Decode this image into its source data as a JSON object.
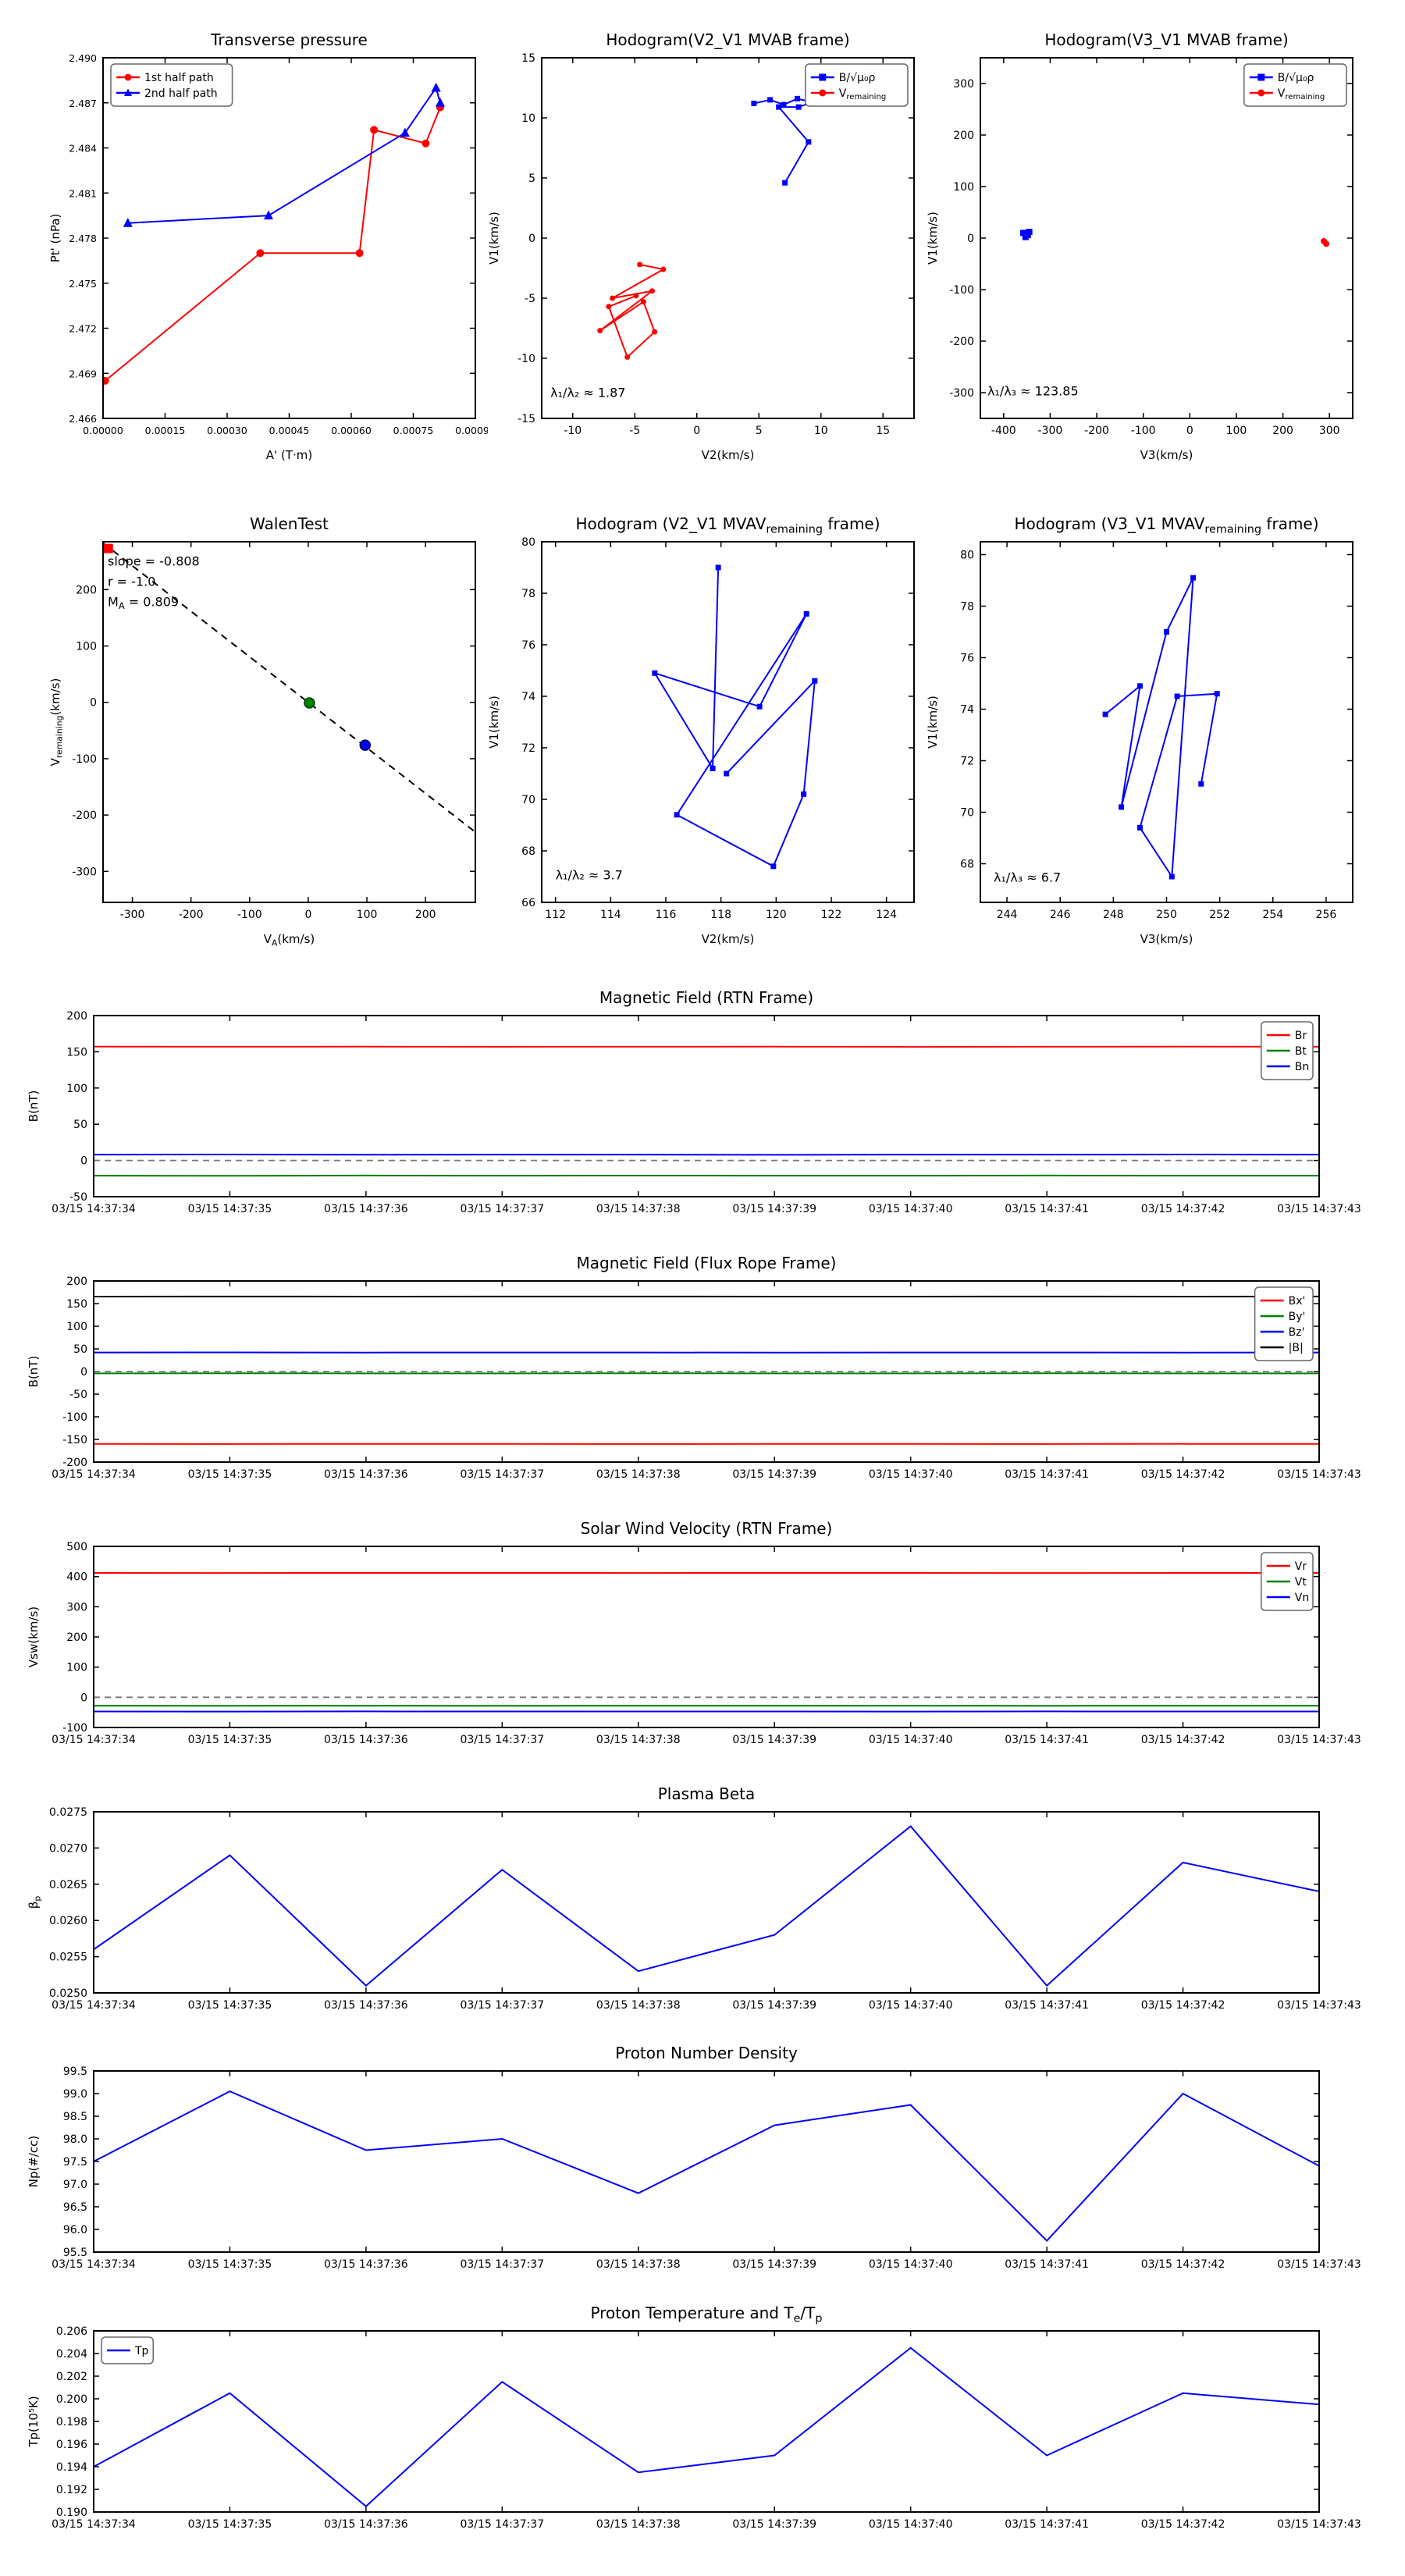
{
  "figure": {
    "background": "#ffffff"
  },
  "time_axis": [
    "03/15 14:37:34",
    "03/15 14:37:35",
    "03/15 14:37:36",
    "03/15 14:37:37",
    "03/15 14:37:38",
    "03/15 14:37:39",
    "03/15 14:37:40",
    "03/15 14:37:41",
    "03/15 14:37:42",
    "03/15 14:37:43"
  ],
  "colors": {
    "red": "#ff0000",
    "green": "#008000",
    "blue": "#0000ff",
    "black": "#000000",
    "dash_gray": "#777777"
  },
  "chart_data": [
    {
      "id": "transverse_pressure",
      "type": "line",
      "title": "Transverse pressure",
      "xlabel": "A' (T·m)",
      "ylabel": "Pt' (nPa)",
      "xlim": [
        0,
        0.0009
      ],
      "ylim": [
        2.466,
        2.49
      ],
      "xticks": [
        0,
        0.00015,
        0.0003,
        0.00045,
        0.0006,
        0.00075,
        0.0009
      ],
      "xtick_labels": [
        "0.00000",
        "0.00015",
        "0.00030",
        "0.00045",
        "0.00060",
        "0.00075",
        "0.00090"
      ],
      "yticks": [
        2.466,
        2.469,
        2.472,
        2.475,
        2.478,
        2.481,
        2.484,
        2.487,
        2.49
      ],
      "ytick_labels": [
        "2.466",
        "2.469",
        "2.472",
        "2.475",
        "2.478",
        "2.481",
        "2.484",
        "2.487",
        "2.490"
      ],
      "tick_font": 12.5,
      "legend": {
        "pos": "nw"
      },
      "series": [
        {
          "name": "1st half path",
          "color": "#ff0000",
          "marker": "circle",
          "marker_size": 10,
          "x": [
            5e-06,
            0.00038,
            0.00062,
            0.000655,
            0.00078,
            0.000815
          ],
          "y": [
            2.4685,
            2.477,
            2.477,
            2.4852,
            2.4843,
            2.4867
          ]
        },
        {
          "name": "2nd half path",
          "color": "#0000ff",
          "marker": "triangle",
          "marker_size": 11,
          "x": [
            6e-05,
            0.0004,
            0.00073,
            0.000805,
            0.000815
          ],
          "y": [
            2.479,
            2.4795,
            2.485,
            2.488,
            2.487
          ]
        }
      ]
    },
    {
      "id": "hodogram_v2v1_mvab",
      "type": "line",
      "title": "Hodogram(V2_V1 MVAB frame)",
      "xlabel": "V2(km/s)",
      "ylabel": "V1(km/s)",
      "xlim": [
        -12.5,
        17.5
      ],
      "ylim": [
        -15,
        15
      ],
      "xticks": [
        -10,
        -5,
        0,
        5,
        10,
        15
      ],
      "yticks": [
        -15,
        -10,
        -5,
        0,
        5,
        10,
        15
      ],
      "legend": {
        "pos": "ne"
      },
      "series": [
        {
          "name": "B/√μ₀ρ",
          "color": "#0000ff",
          "marker": "square",
          "marker_size": 7,
          "x": [
            4.6,
            5.9,
            7.0,
            8.1,
            9.3,
            8.2,
            6.6,
            9.0,
            7.1
          ],
          "y": [
            11.2,
            11.5,
            11.1,
            11.6,
            11.3,
            10.9,
            10.9,
            8.0,
            4.6
          ]
        },
        {
          "name": "V_{remaining}",
          "color": "#ff0000",
          "marker": "circle",
          "marker_size": 7,
          "x": [
            -4.6,
            -2.7,
            -6.8,
            -3.6,
            -7.8,
            -4.3,
            -3.4,
            -5.6,
            -7.1,
            -4.9
          ],
          "y": [
            -2.2,
            -2.6,
            -5.0,
            -4.4,
            -7.7,
            -5.3,
            -7.8,
            -9.9,
            -5.7,
            -4.8
          ]
        }
      ],
      "annotations": [
        {
          "text": "λ₁/λ₂ ≈ 1.87",
          "x": -11.8,
          "y": -13.2
        }
      ]
    },
    {
      "id": "hodogram_v3v1_mvab",
      "type": "line",
      "title": "Hodogram(V3_V1 MVAB frame)",
      "xlabel": "V3(km/s)",
      "ylabel": "V1(km/s)",
      "xlim": [
        -450,
        350
      ],
      "ylim": [
        -350,
        350
      ],
      "xticks": [
        -400,
        -300,
        -200,
        -100,
        0,
        100,
        200,
        300
      ],
      "yticks": [
        -300,
        -200,
        -100,
        0,
        100,
        200,
        300
      ],
      "legend": {
        "pos": "ne"
      },
      "series": [
        {
          "name": "B/√μ₀ρ",
          "color": "#0000ff",
          "marker": "square",
          "marker_size": 8,
          "x": [
            -358,
            -348,
            -353,
            -345
          ],
          "y": [
            10,
            6,
            2,
            12
          ]
        },
        {
          "name": "V_{remaining}",
          "color": "#ff0000",
          "marker": "circle",
          "marker_size": 8,
          "x": [
            288,
            293
          ],
          "y": [
            -6,
            -11
          ]
        }
      ],
      "annotations": [
        {
          "text": "λ₁/λ₃ ≈ 123.85",
          "x": -435,
          "y": -305
        }
      ]
    },
    {
      "id": "walen_test",
      "type": "scatter",
      "title": "WalenTest",
      "xlabel": "V_{A}(km/s)",
      "ylabel": "V_{remaining}(km/s)",
      "xlim": [
        -350,
        285
      ],
      "ylim": [
        -355,
        285
      ],
      "xticks": [
        -300,
        -200,
        -100,
        0,
        100,
        200
      ],
      "yticks": [
        -300,
        -200,
        -100,
        0,
        100,
        200
      ],
      "series": [
        {
          "color": "#000000",
          "dash": "9,7",
          "lw": 2,
          "marker": "none",
          "x": [
            -350,
            285
          ],
          "y": [
            282.8,
            -230.3
          ]
        },
        {
          "color": "#ff0000",
          "marker": "square",
          "marker_size": 12,
          "x": [
            -341
          ],
          "y": [
            273
          ]
        },
        {
          "color": "#008000",
          "marker": "circle",
          "marker_size": 13,
          "marker_edge": "#004400",
          "x": [
            2
          ],
          "y": [
            -1
          ]
        },
        {
          "color": "#0000ff",
          "marker": "circle",
          "marker_size": 13,
          "marker_edge": "#000044",
          "x": [
            97
          ],
          "y": [
            -76
          ]
        }
      ],
      "annotations": [
        {
          "text": "slope = -0.808",
          "x": -342,
          "y": 243
        },
        {
          "text": "r = -1.0",
          "x": -342,
          "y": 207
        },
        {
          "text": "M_{A} = 0.809",
          "x": -342,
          "y": 171
        }
      ]
    },
    {
      "id": "hodogram_v2v1_mvav",
      "type": "line",
      "title": "Hodogram (V2_V1 MVAV_{remaining} frame)",
      "xlabel": "V2(km/s)",
      "ylabel": "V1(km/s)",
      "xlim": [
        111.5,
        125
      ],
      "ylim": [
        66,
        80
      ],
      "xticks": [
        112,
        114,
        116,
        118,
        120,
        122,
        124
      ],
      "yticks": [
        66,
        68,
        70,
        72,
        74,
        76,
        78,
        80
      ],
      "series": [
        {
          "color": "#0000ff",
          "marker": "square",
          "marker_size": 7,
          "x": [
            117.9,
            117.7,
            115.6,
            119.4,
            121.1,
            116.4,
            119.9,
            121.0,
            121.4,
            118.2
          ],
          "y": [
            79.0,
            71.2,
            74.9,
            73.6,
            77.2,
            69.4,
            67.4,
            70.2,
            74.6,
            71.0
          ]
        }
      ],
      "annotations": [
        {
          "text": "λ₁/λ₂ ≈ 3.7",
          "x": 112.0,
          "y": 66.9
        }
      ]
    },
    {
      "id": "hodogram_v3v1_mvav",
      "type": "line",
      "title": "Hodogram (V3_V1 MVAV_{remaining} frame)",
      "xlabel": "V3(km/s)",
      "ylabel": "V1(km/s)",
      "xlim": [
        243,
        257
      ],
      "ylim": [
        66.5,
        80.5
      ],
      "xticks": [
        244,
        246,
        248,
        250,
        252,
        254,
        256
      ],
      "yticks": [
        68,
        70,
        72,
        74,
        76,
        78,
        80
      ],
      "series": [
        {
          "color": "#0000ff",
          "marker": "square",
          "marker_size": 7,
          "x": [
            247.7,
            249.0,
            248.3,
            250.0,
            251.0,
            250.2,
            249.0,
            250.4,
            251.9,
            251.3
          ],
          "y": [
            73.8,
            74.9,
            70.2,
            77.0,
            79.1,
            67.5,
            69.4,
            74.5,
            74.6,
            71.1
          ]
        }
      ],
      "annotations": [
        {
          "text": "λ₁/λ₃ ≈ 6.7",
          "x": 243.5,
          "y": 67.3
        }
      ]
    },
    {
      "id": "mag_rtn",
      "type": "line",
      "title": "Magnetic Field (RTN Frame)",
      "xlabel": "",
      "ylabel": "B(nT)",
      "xlim": [
        0,
        9
      ],
      "ylim": [
        -50,
        200
      ],
      "xticks": [
        0,
        1,
        2,
        3,
        4,
        5,
        6,
        7,
        8,
        9
      ],
      "xtick_labels": "TIME",
      "yticks": [
        -50,
        0,
        50,
        100,
        150,
        200
      ],
      "zero_line": true,
      "legend": {
        "pos": "ne"
      },
      "series": [
        {
          "name": "Br",
          "color": "#ff0000",
          "y": [
            157.2,
            157.0,
            157.1,
            156.9,
            157.0,
            157.1,
            156.8,
            157.0,
            157.2,
            157.0
          ]
        },
        {
          "name": "Bt",
          "color": "#008000",
          "y": [
            -21.0,
            -21.2,
            -20.8,
            -21.1,
            -20.9,
            -21.0,
            -21.1,
            -20.8,
            -21.0,
            -21.1
          ]
        },
        {
          "name": "Bn",
          "color": "#0000ff",
          "y": [
            8.0,
            8.2,
            7.9,
            8.1,
            8.0,
            7.8,
            8.1,
            8.0,
            8.2,
            8.0
          ]
        }
      ]
    },
    {
      "id": "mag_fluxrope",
      "type": "line",
      "title": "Magnetic Field (Flux Rope Frame)",
      "xlabel": "",
      "ylabel": "B(nT)",
      "xlim": [
        0,
        9
      ],
      "ylim": [
        -200,
        200
      ],
      "xticks": [
        0,
        1,
        2,
        3,
        4,
        5,
        6,
        7,
        8,
        9
      ],
      "xtick_labels": "TIME",
      "yticks": [
        -200,
        -150,
        -100,
        -50,
        0,
        50,
        100,
        150,
        200
      ],
      "zero_line": true,
      "legend": {
        "pos": "ne"
      },
      "series": [
        {
          "name": "Bx'",
          "color": "#ff0000",
          "y": [
            -159.8,
            -160.1,
            -159.9,
            -160.0,
            -160.2,
            -159.9,
            -160.0,
            -160.1,
            -159.8,
            -160.0
          ]
        },
        {
          "name": "By'",
          "color": "#008000",
          "y": [
            -4.0,
            -3.8,
            -4.1,
            -4.0,
            -3.9,
            -4.1,
            -4.0,
            -3.8,
            -4.0,
            -4.1
          ]
        },
        {
          "name": "Bz'",
          "color": "#0000ff",
          "y": [
            42.0,
            42.2,
            41.9,
            42.1,
            42.0,
            41.8,
            42.0,
            42.1,
            41.9,
            42.0
          ]
        },
        {
          "name": "|B|",
          "color": "#000000",
          "y": [
            165.6,
            165.8,
            165.5,
            165.7,
            165.8,
            165.5,
            165.6,
            165.7,
            165.6,
            165.7
          ]
        }
      ]
    },
    {
      "id": "vsw_rtn",
      "type": "line",
      "title": "Solar Wind Velocity (RTN Frame)",
      "xlabel": "",
      "ylabel": "Vsw(km/s)",
      "xlim": [
        0,
        9
      ],
      "ylim": [
        -100,
        500
      ],
      "xticks": [
        0,
        1,
        2,
        3,
        4,
        5,
        6,
        7,
        8,
        9
      ],
      "xtick_labels": "TIME",
      "yticks": [
        -100,
        0,
        100,
        200,
        300,
        400,
        500
      ],
      "zero_line": true,
      "legend": {
        "pos": "ne"
      },
      "series": [
        {
          "name": "Vr",
          "color": "#ff0000",
          "y": [
            412.0,
            411.8,
            412.1,
            412.0,
            411.9,
            412.2,
            412.0,
            411.8,
            412.1,
            412.0
          ]
        },
        {
          "name": "Vt",
          "color": "#008000",
          "y": [
            -28.0,
            -28.2,
            -27.9,
            -28.1,
            -28.0,
            -27.8,
            -28.0,
            -28.1,
            -27.9,
            -28.0
          ]
        },
        {
          "name": "Vn",
          "color": "#0000ff",
          "y": [
            -47.0,
            -47.2,
            -46.8,
            -47.1,
            -46.9,
            -47.0,
            -47.2,
            -46.8,
            -47.0,
            -47.1
          ]
        }
      ]
    },
    {
      "id": "plasma_beta",
      "type": "line",
      "title": "Plasma Beta",
      "xlabel": "",
      "ylabel": "β_{p}",
      "xlim": [
        0,
        9
      ],
      "ylim": [
        0.025,
        0.0275
      ],
      "xticks": [
        0,
        1,
        2,
        3,
        4,
        5,
        6,
        7,
        8,
        9
      ],
      "xtick_labels": "TIME",
      "yticks": [
        0.025,
        0.0255,
        0.026,
        0.0265,
        0.027,
        0.0275
      ],
      "ytick_labels": [
        "0.0250",
        "0.0255",
        "0.0260",
        "0.0265",
        "0.0270",
        "0.0275"
      ],
      "series": [
        {
          "color": "#0000ff",
          "y": [
            0.0256,
            0.0269,
            0.0251,
            0.0267,
            0.0253,
            0.0258,
            0.0273,
            0.0251,
            0.0268,
            0.0264
          ]
        }
      ]
    },
    {
      "id": "proton_density",
      "type": "line",
      "title": "Proton Number Density",
      "xlabel": "",
      "ylabel": "Np(#/cc)",
      "xlim": [
        0,
        9
      ],
      "ylim": [
        95.5,
        99.5
      ],
      "xticks": [
        0,
        1,
        2,
        3,
        4,
        5,
        6,
        7,
        8,
        9
      ],
      "xtick_labels": "TIME",
      "yticks": [
        95.5,
        96.0,
        96.5,
        97.0,
        97.5,
        98.0,
        98.5,
        99.0,
        99.5
      ],
      "ytick_labels": [
        "95.5",
        "96.0",
        "96.5",
        "97.0",
        "97.5",
        "98.0",
        "98.5",
        "99.0",
        "99.5"
      ],
      "series": [
        {
          "color": "#0000ff",
          "y": [
            97.5,
            99.05,
            97.75,
            98.0,
            96.8,
            98.3,
            98.75,
            95.75,
            99.0,
            97.4
          ]
        }
      ]
    },
    {
      "id": "proton_temp",
      "type": "line",
      "title": "Proton Temperature and T_{e}/T_{p}",
      "xlabel": "",
      "ylabel": "Tp(10⁵K)",
      "xlim": [
        0,
        9
      ],
      "ylim": [
        0.19,
        0.206
      ],
      "xticks": [
        0,
        1,
        2,
        3,
        4,
        5,
        6,
        7,
        8,
        9
      ],
      "xtick_labels": "TIME",
      "yticks": [
        0.19,
        0.192,
        0.194,
        0.196,
        0.198,
        0.2,
        0.202,
        0.204,
        0.206
      ],
      "ytick_labels": [
        "0.190",
        "0.192",
        "0.194",
        "0.196",
        "0.198",
        "0.200",
        "0.202",
        "0.204",
        "0.206"
      ],
      "legend": {
        "pos": "nw"
      },
      "series": [
        {
          "name": "Tp",
          "color": "#0000ff",
          "y": [
            0.194,
            0.2005,
            0.1905,
            0.2015,
            0.1935,
            0.195,
            0.2045,
            0.195,
            0.2005,
            0.1995
          ]
        }
      ]
    }
  ]
}
